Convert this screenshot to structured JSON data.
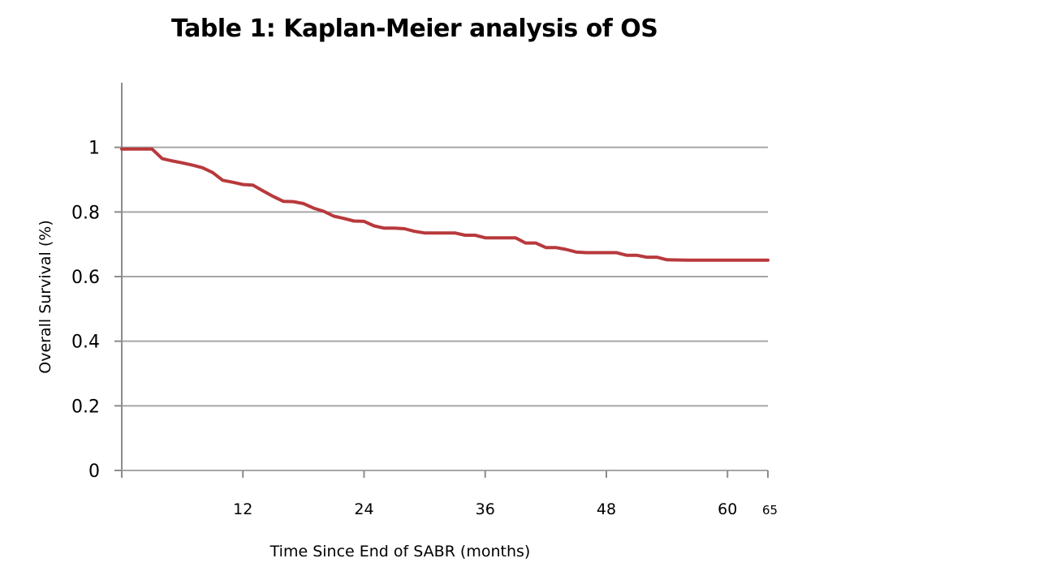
{
  "colors": {
    "series": "#b8393c",
    "grid": "#a6a6a6",
    "axis": "#8c8c8c"
  },
  "chart_data": {
    "type": "line",
    "step": true,
    "title": "Table 1: Kaplan-Meier analysis of OS",
    "xlabel": "Time Since End of SABR (months)",
    "ylabel": "Overall Survival (%)",
    "xlim": [
      0,
      64
    ],
    "ylim": [
      0,
      1.2
    ],
    "x_ticks": [
      12,
      24,
      36,
      48,
      60
    ],
    "x_tick_labels": [
      "12",
      "24",
      "36",
      "48",
      "60"
    ],
    "x_extra_label": "65",
    "y_ticks": [
      0,
      0.2,
      0.4,
      0.6,
      0.8,
      1
    ],
    "y_tick_labels": [
      "0",
      "0.2",
      "0.4",
      "0.6",
      "0.8",
      "1"
    ],
    "grid": true,
    "legend": "none",
    "series": [
      {
        "x": [
          0,
          3,
          4,
          5,
          6,
          7,
          8,
          9,
          10,
          11,
          12,
          13,
          14,
          15,
          16,
          17,
          18,
          19,
          20,
          21,
          22,
          23,
          24,
          25,
          26,
          27,
          28,
          29,
          30,
          31,
          32,
          33,
          34,
          35,
          36,
          37,
          38,
          39,
          40,
          41,
          42,
          43,
          44,
          45,
          46,
          47,
          48,
          49,
          50,
          51,
          52,
          53,
          54,
          56,
          58,
          60,
          62,
          64
        ],
        "y": [
          0.995,
          0.995,
          0.965,
          0.958,
          0.952,
          0.945,
          0.937,
          0.922,
          0.898,
          0.892,
          0.885,
          0.883,
          0.865,
          0.848,
          0.833,
          0.832,
          0.826,
          0.812,
          0.802,
          0.787,
          0.78,
          0.772,
          0.771,
          0.757,
          0.75,
          0.75,
          0.748,
          0.74,
          0.735,
          0.735,
          0.735,
          0.735,
          0.728,
          0.728,
          0.72,
          0.72,
          0.72,
          0.72,
          0.704,
          0.704,
          0.69,
          0.69,
          0.684,
          0.676,
          0.674,
          0.674,
          0.674,
          0.674,
          0.666,
          0.666,
          0.66,
          0.66,
          0.652,
          0.651,
          0.651,
          0.651,
          0.651,
          0.651
        ]
      }
    ]
  }
}
